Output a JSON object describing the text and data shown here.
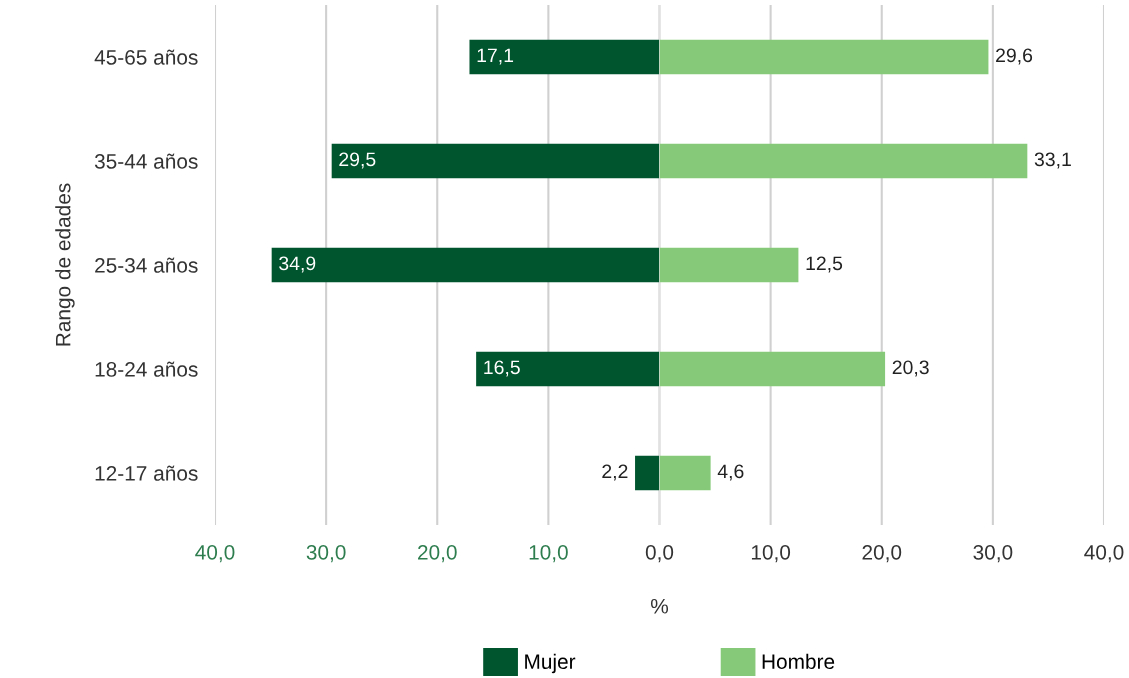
{
  "chart_data": [
    {
      "type": "bar",
      "orientation": "horizontal",
      "ylabel": "Rango de edades",
      "categories": [
        "45-65 años",
        "35-44 años",
        "25-34 años",
        "18-24 años",
        "12-17 años"
      ],
      "series": [
        {
          "name": "Mujer",
          "color": "#00552e",
          "values": [
            17.1,
            29.5,
            34.9,
            16.5,
            2.2
          ],
          "value_labels": [
            "17,1",
            "29,5",
            "34,9",
            "16,5",
            "2,2"
          ]
        }
      ],
      "xlim": [
        40,
        0
      ],
      "xticks": [
        {
          "value": 40,
          "label": "40,0"
        },
        {
          "value": 30,
          "label": "30,0"
        },
        {
          "value": 20,
          "label": "20,0"
        },
        {
          "value": 10,
          "label": "10,0"
        },
        {
          "value": 0,
          "label": null
        }
      ],
      "grid": "x",
      "legend": "bottom"
    },
    {
      "type": "bar",
      "orientation": "horizontal",
      "xlabel": "%",
      "categories": [
        null,
        null,
        null,
        null,
        null
      ],
      "series": [
        {
          "name": "Hombre",
          "color": "#86c978",
          "values": [
            29.6,
            33.1,
            12.5,
            20.3,
            4.6
          ],
          "value_labels": [
            "29,6",
            "33,1",
            "12,5",
            "20,3",
            "4,6"
          ]
        }
      ],
      "xlim": [
        0,
        40
      ],
      "xticks": [
        {
          "value": 0,
          "label": "0,0"
        },
        {
          "value": 10,
          "label": "10,0"
        },
        {
          "value": 20,
          "label": "20,0"
        },
        {
          "value": 30,
          "label": "30,0"
        },
        {
          "value": 40,
          "label": "40,0"
        }
      ],
      "grid": "x",
      "legend": "bottom",
      "tick_labels": "x"
    }
  ]
}
